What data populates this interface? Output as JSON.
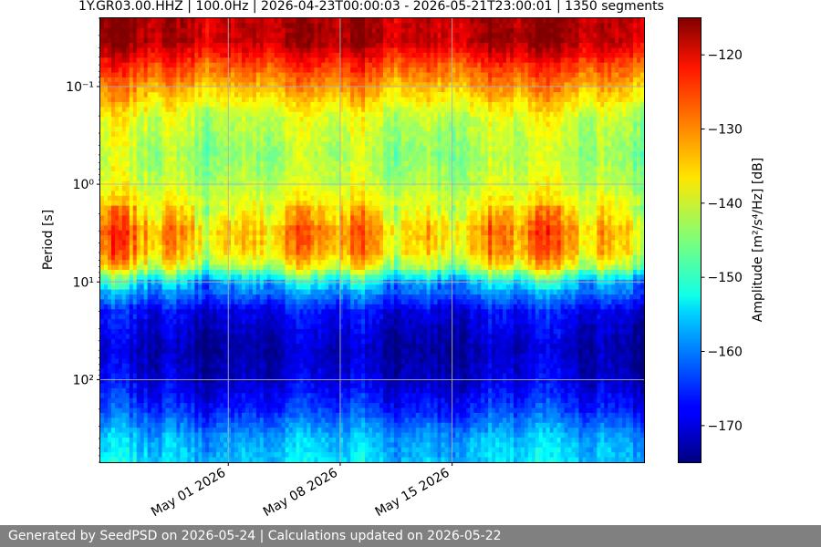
{
  "chart_data": {
    "type": "heatmap",
    "title": "1Y.GR03.00.HHZ | 100.0Hz | 2026-04-23T00:00:03 - 2026-05-21T23:00:01 | 1350 segments",
    "ylabel": "Period [s]",
    "colorbar_label": "Amplitude [m²/s⁴/Hz] [dB]",
    "y_scale": "log",
    "y_inverted": true,
    "ylim": [
      0.02,
      700
    ],
    "y_ticks": [
      {
        "value": 0.1,
        "label": "10⁻¹"
      },
      {
        "value": 1,
        "label": "10⁰"
      },
      {
        "value": 10,
        "label": "10¹"
      },
      {
        "value": 100,
        "label": "10²"
      }
    ],
    "xlim": [
      "2026-04-23",
      "2026-05-27"
    ],
    "x_ticks": [
      {
        "value": "2026-05-01",
        "label": "May 01 2026"
      },
      {
        "value": "2026-05-08",
        "label": "May 08 2026"
      },
      {
        "value": "2026-05-15",
        "label": "May 15 2026"
      }
    ],
    "colorbar_range": [
      -175,
      -115
    ],
    "colorbar_ticks": [
      -120,
      -130,
      -140,
      -150,
      -160,
      -170
    ],
    "colormap": "jet",
    "grid": true,
    "period_profile": [
      {
        "period": 0.02,
        "db": -118
      },
      {
        "period": 0.035,
        "db": -118
      },
      {
        "period": 0.06,
        "db": -126
      },
      {
        "period": 0.1,
        "db": -132
      },
      {
        "period": 0.2,
        "db": -140
      },
      {
        "period": 0.5,
        "db": -143
      },
      {
        "period": 1,
        "db": -141
      },
      {
        "period": 2,
        "db": -136
      },
      {
        "period": 3,
        "db": -132
      },
      {
        "period": 5,
        "db": -134
      },
      {
        "period": 7,
        "db": -140
      },
      {
        "period": 10,
        "db": -155
      },
      {
        "period": 20,
        "db": -168
      },
      {
        "period": 50,
        "db": -172
      },
      {
        "period": 100,
        "db": -170
      },
      {
        "period": 200,
        "db": -165
      },
      {
        "period": 400,
        "db": -157
      },
      {
        "period": 700,
        "db": -155
      }
    ]
  },
  "footer": {
    "text": "Generated by SeedPSD on 2026-05-24 | Calculations updated on 2026-05-22"
  }
}
